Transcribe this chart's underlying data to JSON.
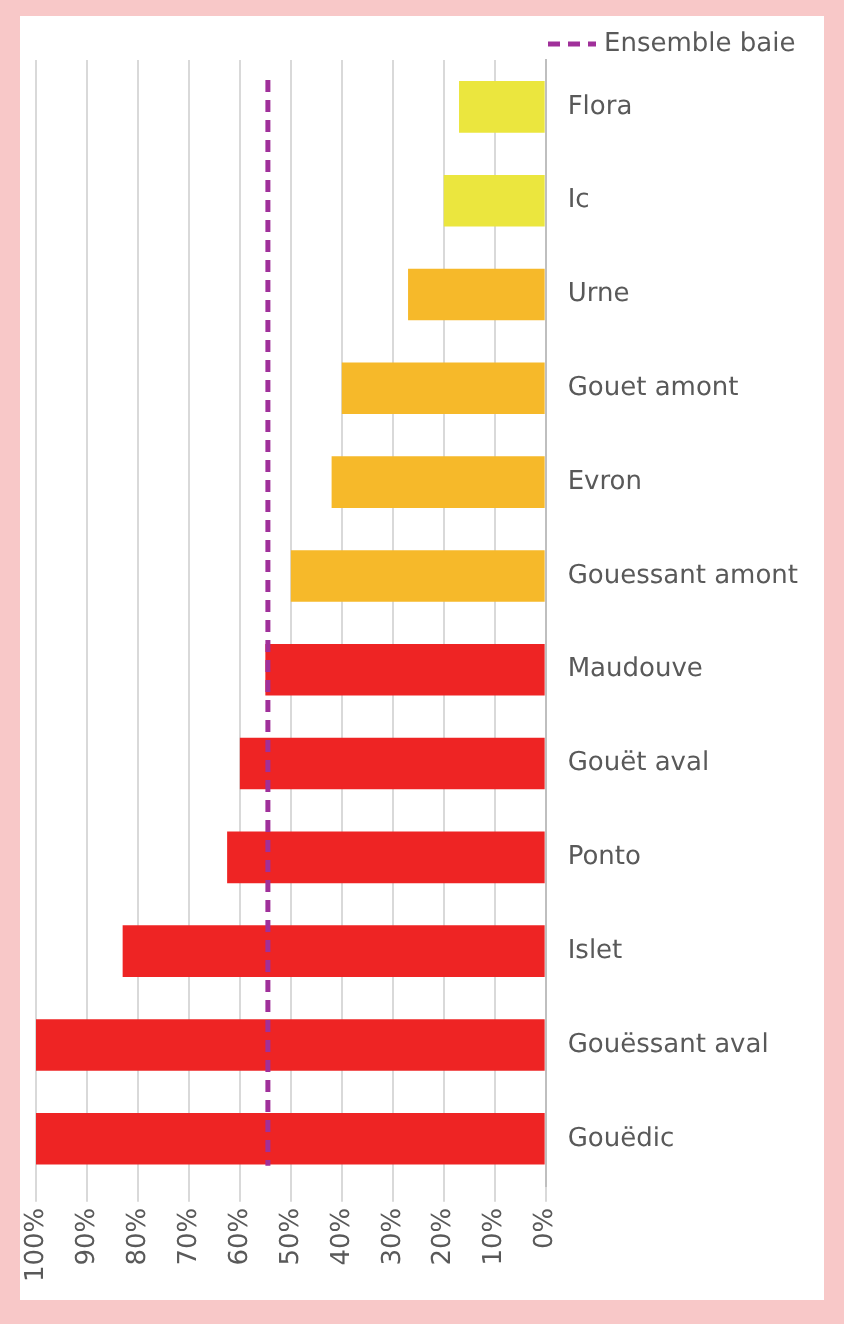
{
  "chart_data": {
    "type": "bar",
    "orientation": "horizontal",
    "categories": [
      "Flora",
      "Ic",
      "Urne",
      "Gouet amont",
      "Evron",
      "Gouessant amont",
      "Maudouve",
      "Gouët aval",
      "Ponto",
      "Islet",
      "Gouëssant aval",
      "Gouëdic"
    ],
    "values": [
      17,
      20,
      27,
      40,
      42,
      50,
      55,
      60,
      62.5,
      83,
      100,
      100
    ],
    "colors": [
      "#ebe63e",
      "#ebe63e",
      "#f6b92a",
      "#f6b92a",
      "#f6b92a",
      "#f6b92a",
      "#ee2424",
      "#ee2424",
      "#ee2424",
      "#ee2424",
      "#ee2424",
      "#ee2424"
    ],
    "xlim": [
      100,
      0
    ],
    "xticks": [
      {
        "value": 100,
        "label": "100%"
      },
      {
        "value": 90,
        "label": "90%"
      },
      {
        "value": 80,
        "label": "80%"
      },
      {
        "value": 70,
        "label": "70%"
      },
      {
        "value": 60,
        "label": "60%"
      },
      {
        "value": 50,
        "label": "50%"
      },
      {
        "value": 40,
        "label": "40%"
      },
      {
        "value": 30,
        "label": "30%"
      },
      {
        "value": 20,
        "label": "20%"
      },
      {
        "value": 10,
        "label": "10%"
      },
      {
        "value": 0,
        "label": "0%"
      }
    ],
    "ref_lines": [
      {
        "axis": "x",
        "value": 54.5,
        "label": "Ensemble baie",
        "color": "#a0309a",
        "line_style": "dashed"
      }
    ],
    "grid": "x",
    "legend": "right"
  }
}
